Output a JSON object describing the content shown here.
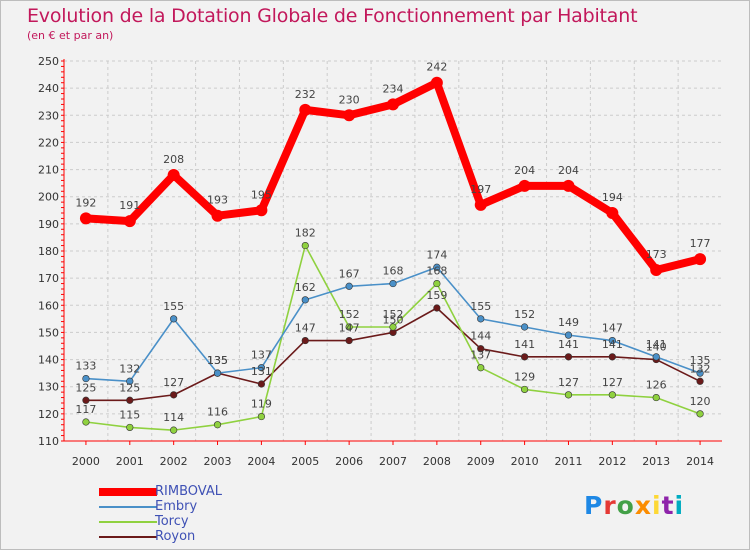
{
  "title": "Evolution de la Dotation Globale de Fonctionnement par Habitant",
  "subtitle": "(en € et par an)",
  "logo": {
    "letters": [
      "P",
      "r",
      "o",
      "x",
      "i",
      "t",
      "i"
    ],
    "colors": [
      "#1e88e5",
      "#e53935",
      "#43a047",
      "#fb8c00",
      "#fdd835",
      "#8e24aa",
      "#00acc1"
    ]
  },
  "colors": {
    "grid": "#cccccc",
    "axis": "#ff0000",
    "tick_text": "#333333",
    "label_text": "#444444"
  },
  "chart_data": {
    "type": "line",
    "title": "Evolution de la Dotation Globale de Fonctionnement par Habitant",
    "subtitle": "(en € et par an)",
    "x": [
      "2000",
      "2001",
      "2002",
      "2003",
      "2004",
      "2005",
      "2006",
      "2007",
      "2008",
      "2009",
      "2010",
      "2011",
      "2012",
      "2013",
      "2014"
    ],
    "ylim": [
      110,
      250
    ],
    "yticks": [
      "110",
      "120",
      "130",
      "140",
      "150",
      "160",
      "170",
      "180",
      "190",
      "200",
      "210",
      "220",
      "230",
      "240",
      "250"
    ],
    "grid": true,
    "legend_position": "bottom-left",
    "series": [
      {
        "name": "RIMBOVAL",
        "color": "#ff0000",
        "values": [
          192,
          191,
          208,
          193,
          195,
          232,
          230,
          234,
          242,
          197,
          204,
          204,
          194,
          173,
          177
        ]
      },
      {
        "name": "Embry",
        "color": "#4a90c8",
        "values": [
          133,
          132,
          155,
          135,
          137,
          162,
          167,
          168,
          174,
          155,
          152,
          149,
          147,
          141,
          135
        ]
      },
      {
        "name": "Torcy",
        "color": "#8fd13f",
        "values": [
          117,
          115,
          114,
          116,
          119,
          182,
          152,
          152,
          168,
          137,
          129,
          127,
          127,
          126,
          120
        ]
      },
      {
        "name": "Royon",
        "color": "#6b1a1a",
        "values": [
          125,
          125,
          127,
          135,
          131,
          147,
          147,
          150,
          159,
          144,
          141,
          141,
          141,
          140,
          132
        ]
      }
    ]
  }
}
